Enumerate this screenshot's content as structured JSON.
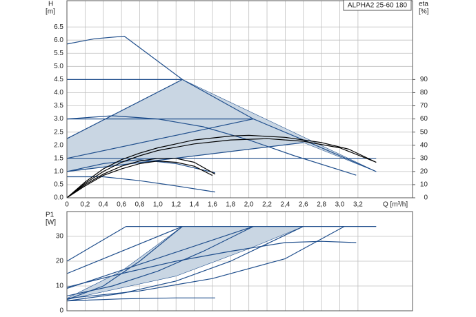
{
  "chart_data": [
    {
      "type": "line",
      "title": "ALPHA2 25-60 180",
      "y_label": "H",
      "y_unit": "[m]",
      "y2_label": "eta",
      "y2_unit": "[%]",
      "x_label": "Q [m³/h]",
      "xlim": [
        0,
        3.8
      ],
      "ylim": [
        0,
        7.5
      ],
      "y2lim": [
        0,
        150
      ],
      "grid": true,
      "xticks": [
        0,
        {
          "value": 0.2,
          "label": "0,2"
        },
        {
          "value": 0.4,
          "label": "0,4"
        },
        {
          "value": 0.6,
          "label": "0,6"
        },
        {
          "value": 0.8,
          "label": "0,8"
        },
        {
          "value": 1.0,
          "label": "1,0"
        },
        {
          "value": 1.2,
          "label": "1,2"
        },
        {
          "value": 1.4,
          "label": "1,4"
        },
        {
          "value": 1.6,
          "label": "1,6"
        },
        {
          "value": 1.8,
          "label": "1,8"
        },
        {
          "value": 2.0,
          "label": "2,0"
        },
        {
          "value": 2.2,
          "label": "2,2"
        },
        {
          "value": 2.4,
          "label": "2,4"
        },
        {
          "value": 2.6,
          "label": "2,6"
        },
        {
          "value": 2.8,
          "label": "2,8"
        },
        {
          "value": 3.0,
          "label": "3,0"
        },
        {
          "value": 3.2,
          "label": "3,2"
        }
      ],
      "yticks": [
        {
          "value": 0,
          "label": "0.0"
        },
        0.5,
        {
          "value": 1,
          "label": "1.0"
        },
        1.5,
        {
          "value": 2,
          "label": "2.0"
        },
        2.5,
        {
          "value": 3,
          "label": "3.0"
        },
        3.5,
        {
          "value": 4,
          "label": "4.0"
        },
        4.5,
        {
          "value": 5,
          "label": "5.0"
        },
        5.5,
        {
          "value": 6,
          "label": "6.0"
        },
        6.5
      ],
      "y2ticks": [
        0,
        10,
        20,
        30,
        40,
        50,
        60,
        70,
        80,
        90
      ],
      "series": [
        {
          "fill": "#c9d6e3",
          "color": "#1f4e8c",
          "x": [
            0,
            0,
            1.27,
            3.4,
            2.6,
            0
          ],
          "values": [
            1.0,
            2.25,
            4.5,
            1.0,
            2.1,
            1.0
          ]
        },
        {
          "color": "#1f4e8c",
          "x": [
            0,
            0.3,
            0.63,
            1.27,
            2.05,
            2.6,
            3.4
          ],
          "values": [
            5.85,
            6.05,
            6.15,
            4.5,
            3.0,
            2.2,
            1.0
          ]
        },
        {
          "color": "#1f4e8c",
          "x": [
            0,
            1.27
          ],
          "values": [
            4.5,
            4.5
          ]
        },
        {
          "color": "#1f4e8c",
          "x": [
            0,
            1.27
          ],
          "values": [
            2.25,
            4.5
          ]
        },
        {
          "color": "#1f4e8c",
          "x": [
            0,
            2.05
          ],
          "values": [
            3.0,
            3.0
          ]
        },
        {
          "color": "#1f4e8c",
          "x": [
            0,
            2.05
          ],
          "values": [
            1.5,
            3.0
          ]
        },
        {
          "color": "#1f4e8c",
          "x": [
            0,
            3.4
          ],
          "values": [
            1.5,
            1.5
          ]
        },
        {
          "color": "#1f4e8c",
          "x": [
            0,
            2.6
          ],
          "values": [
            1.0,
            2.1
          ]
        },
        {
          "color": "#1f4e8c",
          "x": [
            0,
            0.5,
            1.0,
            1.5,
            2.0,
            2.5,
            3.18
          ],
          "values": [
            3.0,
            3.12,
            3.0,
            2.7,
            2.2,
            1.6,
            0.86
          ]
        },
        {
          "color": "#1f4e8c",
          "x": [
            0,
            0.4,
            0.8,
            1.2,
            1.63
          ],
          "values": [
            1.0,
            1.3,
            1.45,
            1.3,
            0.95
          ]
        },
        {
          "color": "#1f4e8c",
          "x": [
            0,
            0.4,
            0.8,
            1.2,
            1.63
          ],
          "values": [
            0.8,
            0.8,
            0.65,
            0.45,
            0.22
          ]
        },
        {
          "color": "#000000",
          "axis": "y2",
          "x": [
            0,
            0.2,
            0.4,
            0.6,
            0.8,
            1.0,
            1.4,
            1.8,
            2.0,
            2.4,
            2.8,
            3.1,
            3.4
          ],
          "values": [
            0,
            12,
            22,
            29,
            34,
            38,
            44,
            47,
            47.5,
            46,
            42,
            37,
            27
          ]
        },
        {
          "color": "#000000",
          "axis": "y2",
          "x": [
            0,
            0.2,
            0.4,
            0.6,
            0.8,
            1.0,
            1.4,
            1.8,
            2.2,
            2.6,
            3.0,
            3.4
          ],
          "values": [
            0,
            11,
            20,
            27,
            32,
            36,
            41,
            44,
            45,
            43,
            38,
            27
          ]
        },
        {
          "color": "#000000",
          "axis": "y2",
          "x": [
            0,
            0.2,
            0.4,
            0.6,
            0.8,
            1.0,
            1.2,
            1.4,
            1.63
          ],
          "values": [
            0,
            10,
            18,
            24,
            28,
            30,
            30,
            27,
            18
          ]
        },
        {
          "color": "#000000",
          "axis": "y2",
          "x": [
            0,
            0.2,
            0.4,
            0.6,
            0.8,
            1.0,
            1.2,
            1.4,
            1.6
          ],
          "values": [
            0,
            9,
            17,
            22,
            26,
            28,
            27,
            24,
            17
          ]
        }
      ]
    },
    {
      "type": "line",
      "y_label": "P1",
      "y_unit": "[W]",
      "xlim": [
        0,
        3.8
      ],
      "ylim": [
        0,
        40
      ],
      "yticks": [
        0,
        10,
        20,
        30
      ],
      "grid": true,
      "series": [
        {
          "fill": "#c9d6e3",
          "color": "#1f4e8c",
          "x": [
            0,
            0.6,
            1.27,
            2.6,
            2.0,
            1.2,
            0
          ],
          "values": [
            5,
            16,
            34,
            34,
            25,
            14,
            4.5
          ]
        },
        {
          "color": "#1f4e8c",
          "x": [
            0.65,
            3.4
          ],
          "values": [
            34,
            34
          ]
        },
        {
          "color": "#1f4e8c",
          "x": [
            0,
            0.65
          ],
          "values": [
            20,
            34
          ]
        },
        {
          "color": "#1f4e8c",
          "x": [
            0,
            1.27
          ],
          "values": [
            15,
            34
          ]
        },
        {
          "color": "#1f4e8c",
          "x": [
            0,
            2.05
          ],
          "values": [
            9,
            34
          ]
        },
        {
          "color": "#1f4e8c",
          "x": [
            0,
            0.4,
            0.8,
            1.27
          ],
          "values": [
            4.5,
            10,
            20,
            34
          ]
        },
        {
          "color": "#1f4e8c",
          "x": [
            0,
            0.5,
            1.0,
            1.5,
            2.05
          ],
          "values": [
            6,
            10,
            16,
            24,
            34
          ]
        },
        {
          "color": "#1f4e8c",
          "x": [
            0,
            0.6,
            1.2,
            1.8,
            2.6
          ],
          "values": [
            4,
            7,
            12,
            20,
            34
          ]
        },
        {
          "color": "#1f4e8c",
          "x": [
            0,
            0.8,
            1.6,
            2.4,
            3.05
          ],
          "values": [
            5,
            8,
            13,
            21,
            34
          ]
        },
        {
          "color": "#1f4e8c",
          "x": [
            0,
            0.6,
            1.2,
            1.8,
            2.4,
            2.8,
            3.18
          ],
          "values": [
            9.5,
            15,
            20,
            24,
            27.5,
            28,
            27.5
          ]
        },
        {
          "color": "#1f4e8c",
          "x": [
            0,
            0.6,
            1.2,
            1.63
          ],
          "values": [
            4,
            4.8,
            5.2,
            5.2
          ]
        }
      ]
    }
  ]
}
